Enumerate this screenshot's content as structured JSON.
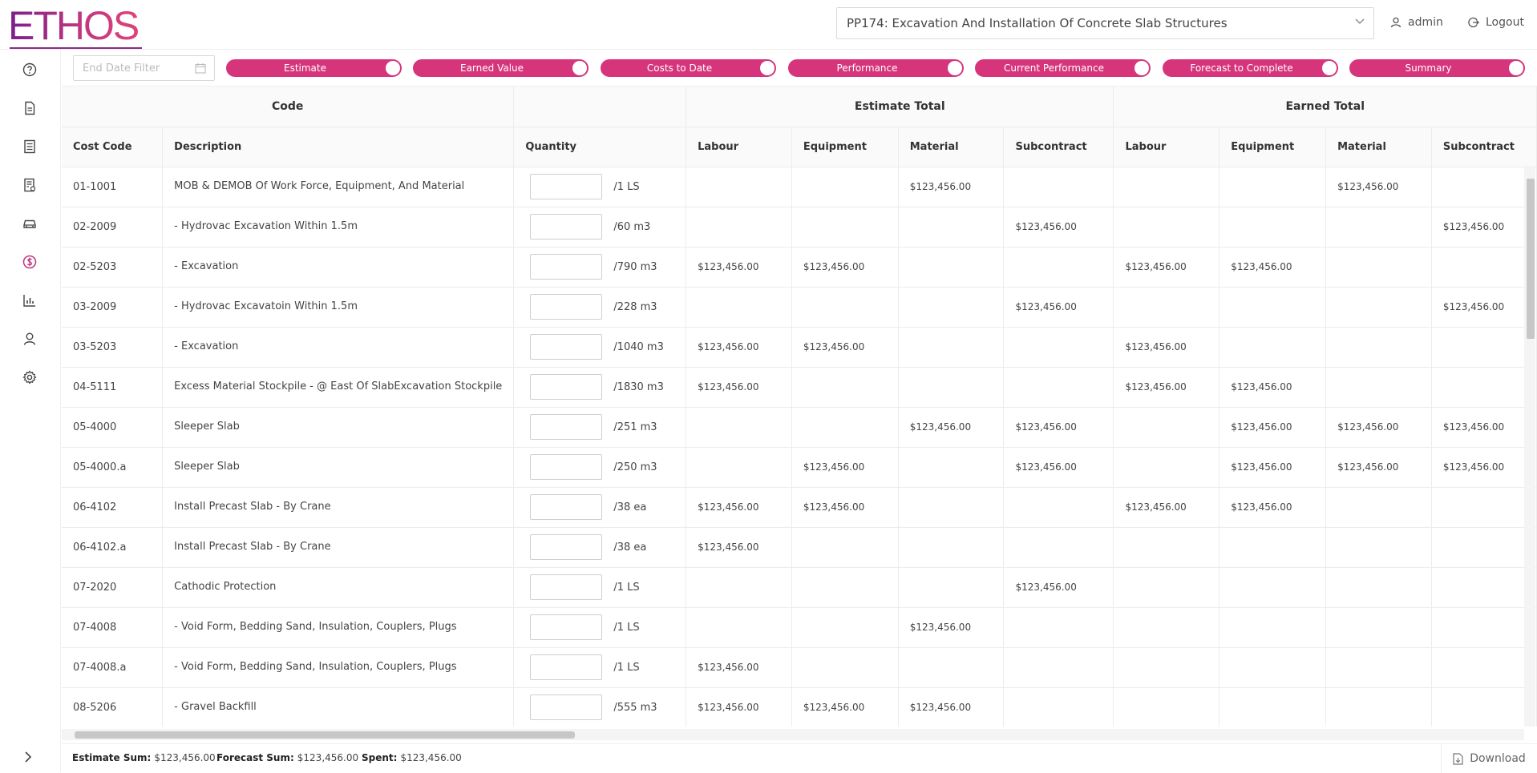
{
  "brand": {
    "logo_text": "ETHOS"
  },
  "header": {
    "project": "PP174: Excavation And Installation Of Concrete Slab Structures",
    "user": "admin",
    "logout": "Logout"
  },
  "sidebar": {
    "items": [
      {
        "icon": "help-circle-icon"
      },
      {
        "icon": "document-icon"
      },
      {
        "icon": "list-icon"
      },
      {
        "icon": "receipt-icon"
      },
      {
        "icon": "car-icon"
      },
      {
        "icon": "dollar-icon",
        "active": true
      },
      {
        "icon": "bar-chart-icon"
      },
      {
        "icon": "user-icon"
      },
      {
        "icon": "gear-icon"
      }
    ]
  },
  "filters": {
    "date_placeholder": "End Date Filter",
    "toggles": [
      "Estimate",
      "Earned Value",
      "Costs to Date",
      "Performance",
      "Current Performance",
      "Forecast to Complete",
      "Summary"
    ]
  },
  "table": {
    "groups": [
      "Code",
      "",
      "Estimate Total",
      "Earned Total"
    ],
    "columns": [
      "Cost Code",
      "Description",
      "Quantity",
      "Labour",
      "Equipment",
      "Material",
      "Subcontract",
      "Labour",
      "Equipment",
      "Material",
      "Subcontract"
    ],
    "rows": [
      {
        "code": "01-1001",
        "desc": "MOB & DEMOB Of Work Force, Equipment, And Material",
        "unit": "/1 LS",
        "cells": [
          "",
          "",
          "$123,456.00",
          "",
          "",
          "",
          "$123,456.00",
          ""
        ]
      },
      {
        "code": "02-2009",
        "desc": "- Hydrovac Excavation Within 1.5m",
        "unit": "/60 m3",
        "cells": [
          "",
          "",
          "",
          "$123,456.00",
          "",
          "",
          "",
          "$123,456.00"
        ]
      },
      {
        "code": "02-5203",
        "desc": "- Excavation",
        "unit": "/790 m3",
        "cells": [
          "$123,456.00",
          "$123,456.00",
          "",
          "",
          "$123,456.00",
          "$123,456.00",
          "",
          ""
        ]
      },
      {
        "code": "03-2009",
        "desc": "- Hydrovac Excavatoin Within 1.5m",
        "unit": "/228 m3",
        "cells": [
          "",
          "",
          "",
          "$123,456.00",
          "",
          "",
          "",
          "$123,456.00"
        ]
      },
      {
        "code": "03-5203",
        "desc": "- Excavation",
        "unit": "/1040 m3",
        "cells": [
          "$123,456.00",
          "$123,456.00",
          "",
          "",
          "$123,456.00",
          "",
          "",
          ""
        ]
      },
      {
        "code": "04-5111",
        "desc": "Excess Material Stockpile - @ East Of SlabExcavation Stockpile",
        "unit": "/1830 m3",
        "cells": [
          "$123,456.00",
          "",
          "",
          "",
          "$123,456.00",
          "$123,456.00",
          "",
          ""
        ]
      },
      {
        "code": "05-4000",
        "desc": "Sleeper Slab",
        "unit": "/251 m3",
        "cells": [
          "",
          "",
          "$123,456.00",
          "$123,456.00",
          "",
          "$123,456.00",
          "$123,456.00",
          "$123,456.00"
        ]
      },
      {
        "code": "05-4000.a",
        "desc": "Sleeper Slab",
        "unit": "/250 m3",
        "cells": [
          "",
          "$123,456.00",
          "",
          "$123,456.00",
          "",
          "$123,456.00",
          "$123,456.00",
          "$123,456.00"
        ]
      },
      {
        "code": "06-4102",
        "desc": "Install Precast Slab - By Crane",
        "unit": "/38 ea",
        "cells": [
          "$123,456.00",
          "$123,456.00",
          "",
          "",
          "$123,456.00",
          "$123,456.00",
          "",
          ""
        ]
      },
      {
        "code": "06-4102.a",
        "desc": "Install Precast Slab - By Crane",
        "unit": "/38 ea",
        "cells": [
          "$123,456.00",
          "",
          "",
          "",
          "",
          "",
          "",
          ""
        ]
      },
      {
        "code": "07-2020",
        "desc": "Cathodic Protection",
        "unit": "/1 LS",
        "cells": [
          "",
          "",
          "",
          "$123,456.00",
          "",
          "",
          "",
          ""
        ]
      },
      {
        "code": "07-4008",
        "desc": "- Void Form, Bedding Sand, Insulation, Couplers, Plugs",
        "unit": "/1 LS",
        "cells": [
          "",
          "",
          "$123,456.00",
          "",
          "",
          "",
          "",
          ""
        ]
      },
      {
        "code": "07-4008.a",
        "desc": "- Void Form, Bedding Sand, Insulation, Couplers, Plugs",
        "unit": "/1 LS",
        "cells": [
          "$123,456.00",
          "",
          "",
          "",
          "",
          "",
          "",
          ""
        ]
      },
      {
        "code": "08-5206",
        "desc": "- Gravel Backfill",
        "unit": "/555 m3",
        "cells": [
          "$123,456.00",
          "$123,456.00",
          "$123,456.00",
          "",
          "",
          "",
          "",
          ""
        ]
      }
    ]
  },
  "footer": {
    "estimate_label": "Estimate Sum:",
    "estimate_value": "$123,456.00",
    "forecast_label": "Forecast Sum:",
    "forecast_value": "$123,456.00",
    "spent_label": "Spent:",
    "spent_value": "$123,456.00",
    "download": "Download"
  },
  "colors": {
    "accent": "#d6357c",
    "brand_purple": "#7a1f8a"
  }
}
